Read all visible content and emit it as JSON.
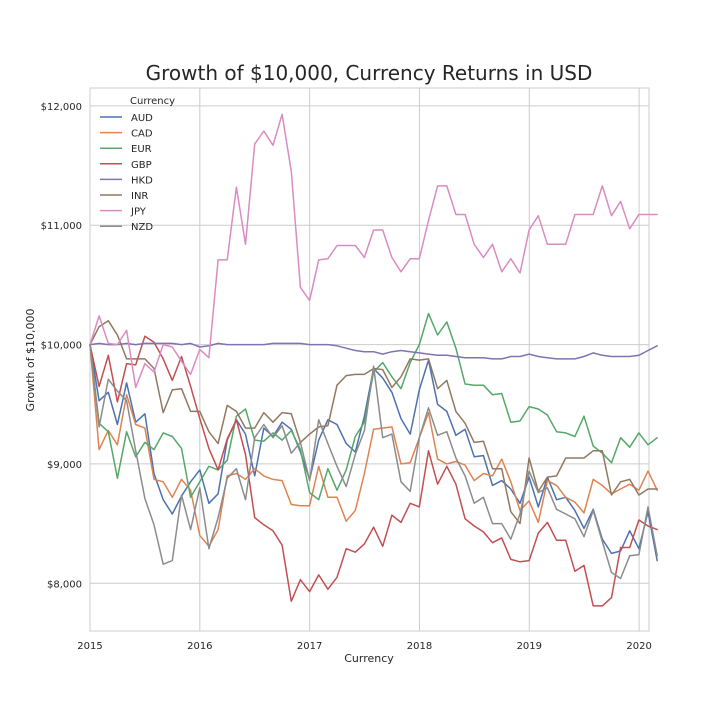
{
  "chart_data": {
    "type": "line",
    "title": "Growth of $10,000, Currency Returns in USD",
    "xlabel": "Currency",
    "ylabel": "Growth of $10,000",
    "xlim": [
      2015.0,
      2020.09
    ],
    "ylim": [
      7600,
      12150
    ],
    "x_ticks": [
      2015,
      2016,
      2017,
      2018,
      2019,
      2020
    ],
    "x_tick_labels": [
      "2015",
      "2016",
      "2017",
      "2018",
      "2019",
      "2020"
    ],
    "y_ticks": [
      8000,
      9000,
      10000,
      11000,
      12000
    ],
    "y_tick_labels": [
      "$8,000",
      "$9,000",
      "$10,000",
      "$11,000",
      "$12,000"
    ],
    "grid": true,
    "legend_title": "Currency",
    "legend_position": "top-left",
    "x_start": 2015.0,
    "x_step": 0.0833,
    "series": [
      {
        "name": "AUD",
        "color": "#4c72b0",
        "values": [
          10000,
          9530,
          9600,
          9330,
          9680,
          9350,
          9420,
          8920,
          8700,
          8580,
          8730,
          8850,
          8950,
          8670,
          8750,
          9200,
          9370,
          9250,
          8900,
          9300,
          9230,
          9350,
          9290,
          9100,
          8870,
          9200,
          9370,
          9330,
          9170,
          9100,
          9400,
          9800,
          9720,
          9600,
          9380,
          9250,
          9620,
          9870,
          9500,
          9440,
          9240,
          9290,
          9060,
          9070,
          8820,
          8860,
          8790,
          8670,
          8890,
          8640,
          8890,
          8700,
          8720,
          8610,
          8460,
          8620,
          8370,
          8250,
          8270,
          8440,
          8290,
          8600,
          8190
        ]
      },
      {
        "name": "CAD",
        "color": "#dd8452",
        "values": [
          10000,
          9120,
          9280,
          9160,
          9580,
          9330,
          9300,
          8870,
          8850,
          8720,
          8870,
          8780,
          8400,
          8310,
          8450,
          8900,
          8920,
          8870,
          8960,
          8900,
          8870,
          8860,
          8660,
          8650,
          8650,
          8980,
          8720,
          8720,
          8520,
          8610,
          8920,
          9290,
          9300,
          9310,
          9000,
          9010,
          9220,
          9430,
          9040,
          9000,
          9020,
          8990,
          8860,
          8920,
          8900,
          9040,
          8850,
          8610,
          8690,
          8510,
          8860,
          8820,
          8720,
          8680,
          8590,
          8870,
          8820,
          8750,
          8790,
          8830,
          8780,
          8940,
          8780
        ]
      },
      {
        "name": "EUR",
        "color": "#55a868",
        "values": [
          10000,
          9340,
          9270,
          8880,
          9270,
          9060,
          9180,
          9120,
          9260,
          9230,
          9130,
          8720,
          8850,
          8980,
          8950,
          9030,
          9400,
          9460,
          9200,
          9190,
          9260,
          9200,
          9280,
          9120,
          8760,
          8700,
          8960,
          8780,
          8950,
          9230,
          9350,
          9770,
          9850,
          9730,
          9630,
          9850,
          10000,
          10260,
          10080,
          10190,
          9970,
          9670,
          9660,
          9660,
          9580,
          9590,
          9350,
          9360,
          9480,
          9460,
          9410,
          9270,
          9260,
          9230,
          9400,
          9150,
          9090,
          9010,
          9220,
          9140,
          9260,
          9160,
          9220
        ]
      },
      {
        "name": "GBP",
        "color": "#c44e52",
        "values": [
          10000,
          9650,
          9910,
          9520,
          9840,
          9830,
          10070,
          10020,
          9880,
          9700,
          9900,
          9650,
          9380,
          9130,
          8950,
          9210,
          9370,
          9080,
          8550,
          8490,
          8440,
          8320,
          7850,
          8030,
          7930,
          8070,
          7950,
          8050,
          8290,
          8260,
          8330,
          8470,
          8310,
          8570,
          8510,
          8670,
          8640,
          9110,
          8830,
          8980,
          8830,
          8540,
          8480,
          8430,
          8340,
          8380,
          8200,
          8180,
          8190,
          8420,
          8510,
          8360,
          8360,
          8100,
          8150,
          7810,
          7810,
          7880,
          8300,
          8300,
          8530,
          8480,
          8450
        ]
      },
      {
        "name": "HKD",
        "color": "#8172b3",
        "values": [
          10000,
          10010,
          10000,
          10000,
          10010,
          10000,
          10010,
          10010,
          10010,
          10010,
          10000,
          10010,
          9980,
          9990,
          10010,
          10000,
          10000,
          10000,
          10000,
          10000,
          10010,
          10010,
          10010,
          10010,
          10000,
          10000,
          10000,
          9990,
          9970,
          9950,
          9940,
          9940,
          9920,
          9940,
          9950,
          9940,
          9930,
          9920,
          9910,
          9910,
          9900,
          9890,
          9890,
          9890,
          9880,
          9880,
          9900,
          9900,
          9920,
          9900,
          9890,
          9880,
          9880,
          9880,
          9900,
          9930,
          9910,
          9900,
          9900,
          9900,
          9910,
          9950,
          9990
        ]
      },
      {
        "name": "INR",
        "color": "#937860",
        "values": [
          10000,
          10150,
          10200,
          10080,
          9880,
          9880,
          9880,
          9800,
          9430,
          9620,
          9630,
          9440,
          9440,
          9270,
          9170,
          9490,
          9440,
          9300,
          9300,
          9430,
          9350,
          9430,
          9420,
          9180,
          9250,
          9310,
          9320,
          9660,
          9740,
          9750,
          9750,
          9800,
          9790,
          9640,
          9730,
          9880,
          9870,
          9880,
          9630,
          9700,
          9440,
          9340,
          9180,
          9190,
          8960,
          8960,
          8600,
          8500,
          9050,
          8770,
          8890,
          8900,
          9050,
          9050,
          9050,
          9110,
          9110,
          8740,
          8850,
          8870,
          8740,
          8790,
          8790
        ]
      },
      {
        "name": "JPY",
        "color": "#da8bc3",
        "values": [
          10000,
          10240,
          10010,
          10000,
          10120,
          9640,
          9840,
          9770,
          10000,
          9980,
          9860,
          9750,
          9960,
          9890,
          10710,
          10710,
          11320,
          10840,
          11680,
          11790,
          11670,
          11930,
          11450,
          10480,
          10370,
          10710,
          10720,
          10830,
          10830,
          10830,
          10730,
          10960,
          10960,
          10730,
          10610,
          10720,
          10720,
          11040,
          11330,
          11330,
          11090,
          11090,
          10840,
          10730,
          10840,
          10610,
          10720,
          10600,
          10960,
          11080,
          10840,
          10840,
          10840,
          11090,
          11090,
          11090,
          11330,
          11080,
          11200,
          10970,
          11090,
          11090,
          11090
        ]
      },
      {
        "name": "NZD",
        "color": "#8c8c8c",
        "values": [
          10000,
          9310,
          9710,
          9610,
          9530,
          9110,
          8710,
          8490,
          8160,
          8190,
          8740,
          8450,
          8800,
          8290,
          8550,
          8880,
          8960,
          8700,
          9220,
          9330,
          9220,
          9320,
          9090,
          9180,
          8860,
          9370,
          9170,
          8980,
          8810,
          9080,
          9280,
          9820,
          9220,
          9250,
          8850,
          8770,
          9220,
          9470,
          9240,
          9270,
          9050,
          8900,
          8670,
          8720,
          8500,
          8500,
          8370,
          8580,
          8940,
          8760,
          8800,
          8620,
          8580,
          8540,
          8390,
          8610,
          8350,
          8090,
          8040,
          8230,
          8240,
          8640,
          8230
        ]
      }
    ]
  }
}
